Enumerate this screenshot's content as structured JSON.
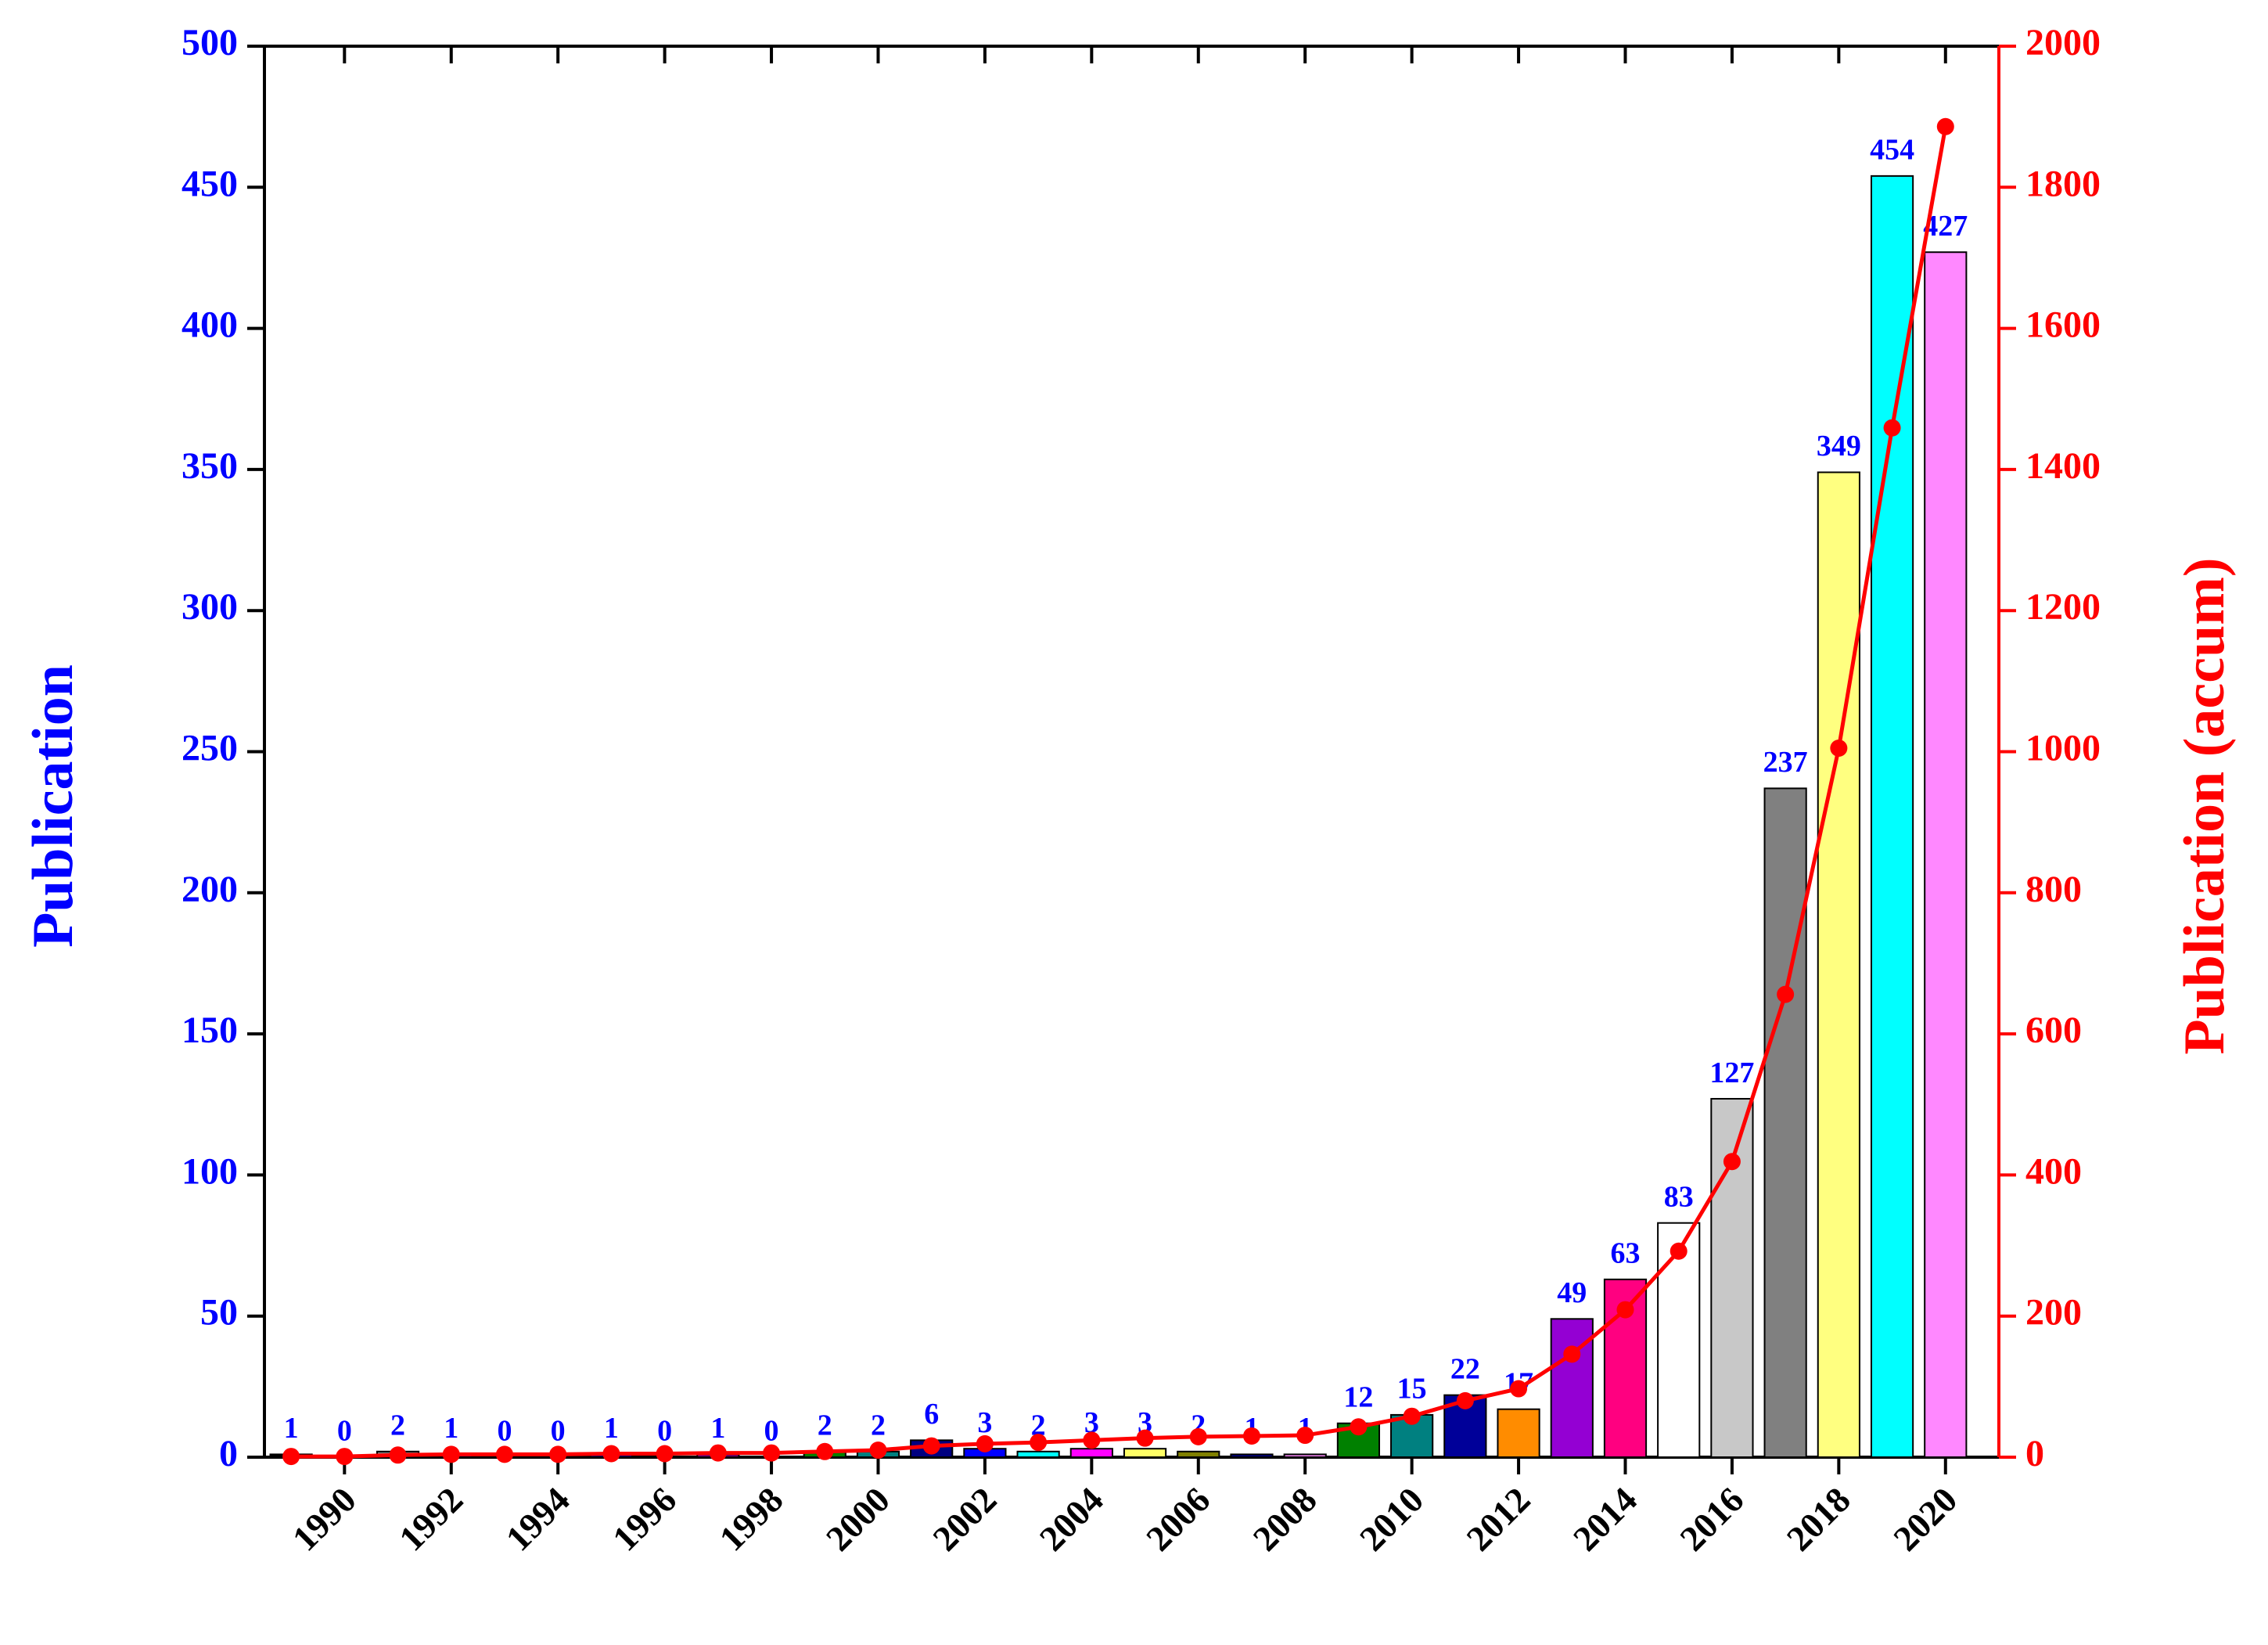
{
  "chart_data": {
    "type": "combo",
    "ylabel": "Publication",
    "y2label": "Publication (accum)",
    "x": [
      1989,
      1990,
      1991,
      1992,
      1993,
      1994,
      1995,
      1996,
      1997,
      1998,
      1999,
      2000,
      2001,
      2002,
      2003,
      2004,
      2005,
      2006,
      2007,
      2008,
      2009,
      2010,
      2011,
      2012,
      2013,
      2014,
      2015,
      2016,
      2017,
      2018,
      2019,
      2020
    ],
    "xlim": [
      1988.5,
      2021
    ],
    "xticks": [
      1990,
      1992,
      1994,
      1996,
      1998,
      2000,
      2002,
      2004,
      2006,
      2008,
      2010,
      2012,
      2014,
      2016,
      2018,
      2020
    ],
    "ylim": [
      0,
      500
    ],
    "yticks": [
      0,
      50,
      100,
      150,
      200,
      250,
      300,
      350,
      400,
      450,
      500
    ],
    "y2lim": [
      0,
      2000
    ],
    "y2ticks": [
      0,
      200,
      400,
      600,
      800,
      1000,
      1200,
      1400,
      1600,
      1800,
      2000
    ],
    "y_color": "#0000ff",
    "y2_color": "#ff0000",
    "series": [
      {
        "type": "bar",
        "colors": [
          "#000000",
          "#ff0000",
          "#808080",
          "#0000ff",
          "#ff00ff",
          "#808000",
          "#000080",
          "#ee82ee",
          "#800080",
          "#800000",
          "#008000",
          "#008080",
          "#000080",
          "#0000ff",
          "#00ffff",
          "#ff00ff",
          "#ffff66",
          "#808000",
          "#000080",
          "#ee82ee",
          "#008000",
          "#008080",
          "#000099",
          "#ff8c00",
          "#9400d3",
          "#ff0080",
          "#ffffff",
          "#c8c8c8",
          "#808080",
          "#ffff80",
          "#00ffff",
          "#ff88ff"
        ],
        "values": [
          1,
          0,
          2,
          1,
          0,
          0,
          1,
          0,
          1,
          0,
          2,
          2,
          6,
          3,
          2,
          3,
          3,
          2,
          1,
          1,
          12,
          15,
          22,
          17,
          49,
          63,
          83,
          127,
          237,
          349,
          454,
          427
        ]
      },
      {
        "type": "line",
        "axis": "y2",
        "color": "#ff0000",
        "values": [
          1,
          1,
          3,
          4,
          4,
          4,
          5,
          5,
          6,
          6,
          8,
          10,
          16,
          19,
          21,
          24,
          27,
          29,
          30,
          31,
          43,
          58,
          80,
          97,
          146,
          209,
          292,
          419,
          656,
          1005,
          1459,
          1886
        ]
      }
    ]
  }
}
